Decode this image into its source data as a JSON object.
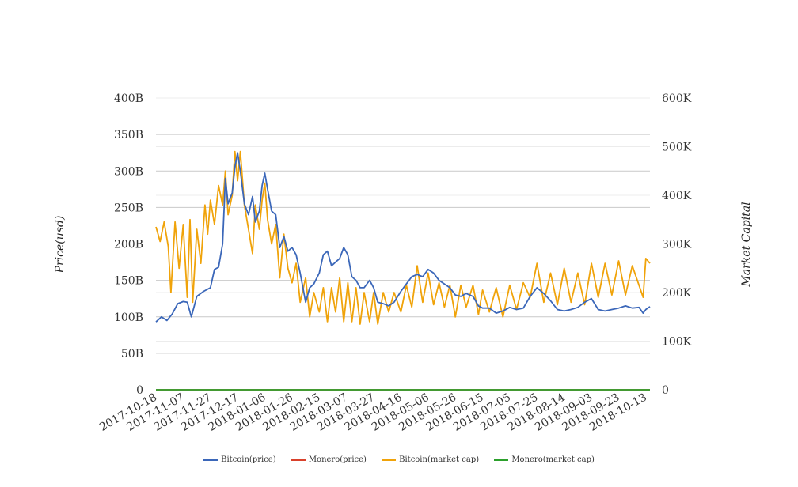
{
  "chart_data": {
    "type": "line",
    "title": "",
    "ylabel": "Price(usd)",
    "y2label": "Market Capital",
    "ylim": [
      0,
      400
    ],
    "y2lim": [
      0,
      600
    ],
    "yticks": [
      "0",
      "50B",
      "100B",
      "150B",
      "200B",
      "250B",
      "300B",
      "350B",
      "400B"
    ],
    "y2ticks": [
      "0",
      "100K",
      "200K",
      "300K",
      "400K",
      "500K",
      "600K"
    ],
    "x_start": "2017-10-18",
    "x_end": "2018-10-16",
    "x_ticks": [
      "2017-10-18",
      "2017-11-07",
      "2017-11-27",
      "2017-12-17",
      "2018-01-06",
      "2018-01-26",
      "2018-02-15",
      "2018-03-07",
      "2018-03-27",
      "2018-04-16",
      "2018-05-06",
      "2018-05-26",
      "2018-06-15",
      "2018-07-05",
      "2018-07-25",
      "2018-08-14",
      "2018-09-03",
      "2018-09-23",
      "2018-10-13"
    ],
    "grid": true,
    "legend_position": "bottom",
    "series": [
      {
        "name": "Bitcoin(price)",
        "axis": "left",
        "color": "#3b67b9",
        "points": [
          [
            "2017-10-18",
            93
          ],
          [
            "2017-10-22",
            100
          ],
          [
            "2017-10-26",
            95
          ],
          [
            "2017-10-30",
            104
          ],
          [
            "2017-11-03",
            118
          ],
          [
            "2017-11-07",
            121
          ],
          [
            "2017-11-10",
            120
          ],
          [
            "2017-11-13",
            100
          ],
          [
            "2017-11-17",
            128
          ],
          [
            "2017-11-22",
            135
          ],
          [
            "2017-11-27",
            140
          ],
          [
            "2017-11-30",
            165
          ],
          [
            "2017-12-03",
            168
          ],
          [
            "2017-12-06",
            200
          ],
          [
            "2017-12-08",
            290
          ],
          [
            "2017-12-10",
            255
          ],
          [
            "2017-12-13",
            270
          ],
          [
            "2017-12-15",
            305
          ],
          [
            "2017-12-17",
            325
          ],
          [
            "2017-12-19",
            300
          ],
          [
            "2017-12-22",
            255
          ],
          [
            "2017-12-25",
            240
          ],
          [
            "2017-12-28",
            265
          ],
          [
            "2017-12-30",
            230
          ],
          [
            "2018-01-02",
            245
          ],
          [
            "2018-01-04",
            280
          ],
          [
            "2018-01-06",
            297
          ],
          [
            "2018-01-08",
            275
          ],
          [
            "2018-01-11",
            245
          ],
          [
            "2018-01-14",
            240
          ],
          [
            "2018-01-17",
            195
          ],
          [
            "2018-01-20",
            210
          ],
          [
            "2018-01-23",
            190
          ],
          [
            "2018-01-26",
            195
          ],
          [
            "2018-01-29",
            185
          ],
          [
            "2018-02-01",
            160
          ],
          [
            "2018-02-05",
            120
          ],
          [
            "2018-02-08",
            140
          ],
          [
            "2018-02-11",
            145
          ],
          [
            "2018-02-15",
            160
          ],
          [
            "2018-02-18",
            185
          ],
          [
            "2018-02-21",
            190
          ],
          [
            "2018-02-24",
            170
          ],
          [
            "2018-02-27",
            175
          ],
          [
            "2018-03-02",
            180
          ],
          [
            "2018-03-05",
            195
          ],
          [
            "2018-03-08",
            185
          ],
          [
            "2018-03-11",
            155
          ],
          [
            "2018-03-14",
            150
          ],
          [
            "2018-03-17",
            140
          ],
          [
            "2018-03-20",
            140
          ],
          [
            "2018-03-24",
            150
          ],
          [
            "2018-03-27",
            140
          ],
          [
            "2018-03-30",
            120
          ],
          [
            "2018-04-03",
            118
          ],
          [
            "2018-04-07",
            115
          ],
          [
            "2018-04-11",
            120
          ],
          [
            "2018-04-16",
            135
          ],
          [
            "2018-04-20",
            145
          ],
          [
            "2018-04-24",
            155
          ],
          [
            "2018-04-28",
            158
          ],
          [
            "2018-05-02",
            155
          ],
          [
            "2018-05-06",
            165
          ],
          [
            "2018-05-10",
            160
          ],
          [
            "2018-05-14",
            150
          ],
          [
            "2018-05-18",
            145
          ],
          [
            "2018-05-22",
            140
          ],
          [
            "2018-05-26",
            130
          ],
          [
            "2018-05-30",
            128
          ],
          [
            "2018-06-03",
            132
          ],
          [
            "2018-06-08",
            128
          ],
          [
            "2018-06-12",
            115
          ],
          [
            "2018-06-15",
            112
          ],
          [
            "2018-06-20",
            112
          ],
          [
            "2018-06-25",
            105
          ],
          [
            "2018-06-30",
            108
          ],
          [
            "2018-07-05",
            113
          ],
          [
            "2018-07-10",
            110
          ],
          [
            "2018-07-15",
            112
          ],
          [
            "2018-07-20",
            128
          ],
          [
            "2018-07-25",
            140
          ],
          [
            "2018-07-30",
            132
          ],
          [
            "2018-08-04",
            122
          ],
          [
            "2018-08-09",
            110
          ],
          [
            "2018-08-14",
            108
          ],
          [
            "2018-08-19",
            110
          ],
          [
            "2018-08-24",
            113
          ],
          [
            "2018-08-29",
            120
          ],
          [
            "2018-09-03",
            125
          ],
          [
            "2018-09-08",
            110
          ],
          [
            "2018-09-13",
            108
          ],
          [
            "2018-09-18",
            110
          ],
          [
            "2018-09-23",
            112
          ],
          [
            "2018-09-28",
            115
          ],
          [
            "2018-10-03",
            112
          ],
          [
            "2018-10-08",
            113
          ],
          [
            "2018-10-11",
            105
          ],
          [
            "2018-10-13",
            110
          ],
          [
            "2018-10-16",
            114
          ]
        ]
      },
      {
        "name": "Monero(price)",
        "axis": "left",
        "color": "#d9412b",
        "points": [
          [
            "2017-10-18",
            0
          ],
          [
            "2018-10-16",
            0
          ]
        ]
      },
      {
        "name": "Bitcoin(market cap)",
        "axis": "right",
        "color": "#f0a30a",
        "points": [
          [
            "2017-10-18",
            335
          ],
          [
            "2017-10-21",
            305
          ],
          [
            "2017-10-24",
            345
          ],
          [
            "2017-10-27",
            295
          ],
          [
            "2017-10-29",
            200
          ],
          [
            "2017-11-01",
            345
          ],
          [
            "2017-11-04",
            250
          ],
          [
            "2017-11-07",
            340
          ],
          [
            "2017-11-10",
            190
          ],
          [
            "2017-11-12",
            350
          ],
          [
            "2017-11-14",
            180
          ],
          [
            "2017-11-17",
            330
          ],
          [
            "2017-11-20",
            260
          ],
          [
            "2017-11-23",
            380
          ],
          [
            "2017-11-25",
            320
          ],
          [
            "2017-11-27",
            390
          ],
          [
            "2017-11-30",
            340
          ],
          [
            "2017-12-03",
            420
          ],
          [
            "2017-12-06",
            380
          ],
          [
            "2017-12-08",
            450
          ],
          [
            "2017-12-10",
            360
          ],
          [
            "2017-12-13",
            400
          ],
          [
            "2017-12-15",
            490
          ],
          [
            "2017-12-17",
            430
          ],
          [
            "2017-12-19",
            490
          ],
          [
            "2017-12-22",
            380
          ],
          [
            "2017-12-25",
            330
          ],
          [
            "2017-12-28",
            280
          ],
          [
            "2017-12-30",
            380
          ],
          [
            "2018-01-02",
            330
          ],
          [
            "2018-01-04",
            390
          ],
          [
            "2018-01-06",
            425
          ],
          [
            "2018-01-08",
            350
          ],
          [
            "2018-01-11",
            300
          ],
          [
            "2018-01-14",
            340
          ],
          [
            "2018-01-17",
            230
          ],
          [
            "2018-01-20",
            320
          ],
          [
            "2018-01-23",
            250
          ],
          [
            "2018-01-26",
            220
          ],
          [
            "2018-01-29",
            260
          ],
          [
            "2018-02-01",
            180
          ],
          [
            "2018-02-05",
            230
          ],
          [
            "2018-02-08",
            150
          ],
          [
            "2018-02-11",
            200
          ],
          [
            "2018-02-15",
            160
          ],
          [
            "2018-02-18",
            210
          ],
          [
            "2018-02-21",
            140
          ],
          [
            "2018-02-24",
            210
          ],
          [
            "2018-02-27",
            160
          ],
          [
            "2018-03-02",
            230
          ],
          [
            "2018-03-05",
            140
          ],
          [
            "2018-03-08",
            220
          ],
          [
            "2018-03-11",
            140
          ],
          [
            "2018-03-14",
            210
          ],
          [
            "2018-03-17",
            135
          ],
          [
            "2018-03-20",
            200
          ],
          [
            "2018-03-24",
            140
          ],
          [
            "2018-03-27",
            200
          ],
          [
            "2018-03-30",
            135
          ],
          [
            "2018-04-03",
            200
          ],
          [
            "2018-04-07",
            160
          ],
          [
            "2018-04-11",
            200
          ],
          [
            "2018-04-16",
            160
          ],
          [
            "2018-04-20",
            215
          ],
          [
            "2018-04-24",
            170
          ],
          [
            "2018-04-28",
            255
          ],
          [
            "2018-05-02",
            180
          ],
          [
            "2018-05-06",
            240
          ],
          [
            "2018-05-10",
            175
          ],
          [
            "2018-05-14",
            220
          ],
          [
            "2018-05-18",
            170
          ],
          [
            "2018-05-22",
            215
          ],
          [
            "2018-05-26",
            150
          ],
          [
            "2018-05-30",
            215
          ],
          [
            "2018-06-03",
            170
          ],
          [
            "2018-06-08",
            215
          ],
          [
            "2018-06-12",
            155
          ],
          [
            "2018-06-15",
            205
          ],
          [
            "2018-06-20",
            160
          ],
          [
            "2018-06-25",
            210
          ],
          [
            "2018-06-30",
            150
          ],
          [
            "2018-07-05",
            215
          ],
          [
            "2018-07-10",
            165
          ],
          [
            "2018-07-15",
            220
          ],
          [
            "2018-07-20",
            190
          ],
          [
            "2018-07-25",
            260
          ],
          [
            "2018-07-30",
            180
          ],
          [
            "2018-08-04",
            240
          ],
          [
            "2018-08-09",
            175
          ],
          [
            "2018-08-14",
            250
          ],
          [
            "2018-08-19",
            180
          ],
          [
            "2018-08-24",
            240
          ],
          [
            "2018-08-29",
            175
          ],
          [
            "2018-09-03",
            260
          ],
          [
            "2018-09-08",
            190
          ],
          [
            "2018-09-13",
            260
          ],
          [
            "2018-09-18",
            195
          ],
          [
            "2018-09-23",
            265
          ],
          [
            "2018-09-28",
            195
          ],
          [
            "2018-10-03",
            255
          ],
          [
            "2018-10-08",
            215
          ],
          [
            "2018-10-11",
            190
          ],
          [
            "2018-10-13",
            270
          ],
          [
            "2018-10-16",
            260
          ]
        ]
      },
      {
        "name": "Monero(market cap)",
        "axis": "right",
        "color": "#2ca02c",
        "points": [
          [
            "2017-10-18",
            0
          ],
          [
            "2018-10-16",
            0
          ]
        ]
      }
    ]
  }
}
